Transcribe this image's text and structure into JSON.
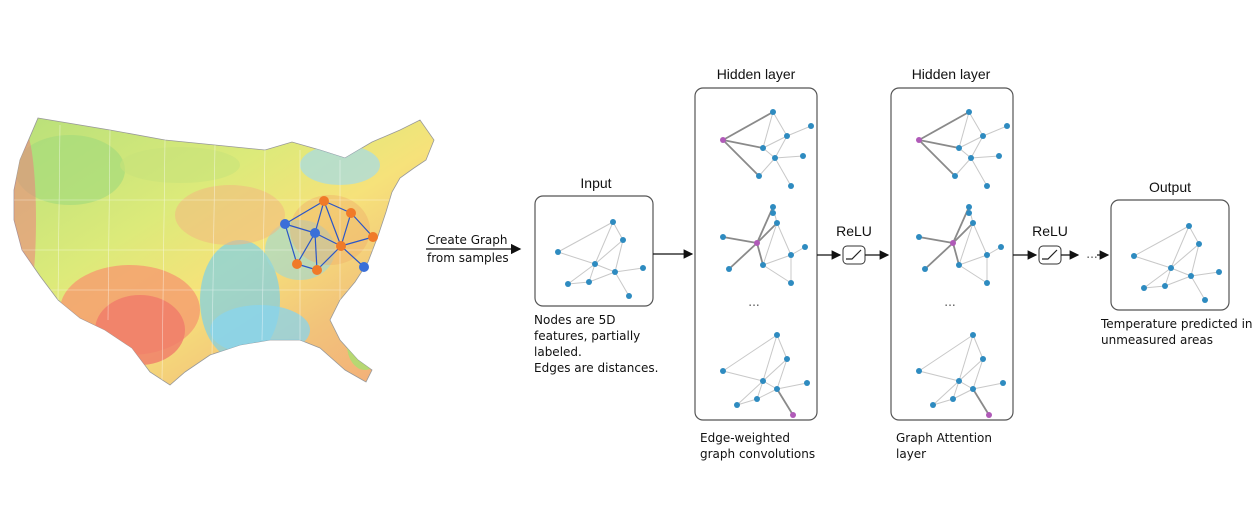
{
  "map": {
    "arrow_label_line1": "Create Graph",
    "arrow_label_line2": "from samples"
  },
  "input": {
    "title": "Input",
    "caption": [
      "Nodes are 5D",
      "features, partially",
      "labeled.",
      "Edges are distances."
    ]
  },
  "hidden1": {
    "title": "Hidden layer",
    "ellipsis": "...",
    "caption": [
      "Edge-weighted",
      "graph convolutions"
    ]
  },
  "relu1": {
    "label": "ReLU"
  },
  "hidden2": {
    "title": "Hidden layer",
    "ellipsis": "...",
    "caption": [
      "Graph Attention",
      "layer"
    ]
  },
  "relu2": {
    "label": "ReLU"
  },
  "trailing_ellipsis": "...",
  "output": {
    "title": "Output",
    "caption": [
      "Temperature predicted in",
      "unmeasured areas"
    ]
  },
  "colors": {
    "node_blue": "#2e8bc0",
    "node_purple": "#b05ab8",
    "edge_light": "#c8c8c8",
    "edge_dark": "#8a8a8a",
    "map_node_blue": "#3a6fd8",
    "map_node_orange": "#f07a28",
    "map_edge": "#2a55c8",
    "box_border": "#555555"
  }
}
